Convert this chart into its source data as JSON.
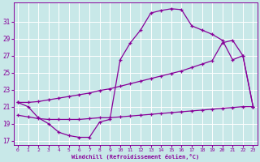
{
  "xlabel": "Windchill (Refroidissement éolien,°C)",
  "background_color": "#c8e8e8",
  "grid_color": "#b0d8d8",
  "line_color": "#880099",
  "ylim": [
    16.5,
    33.2
  ],
  "yticks": [
    17,
    19,
    21,
    23,
    25,
    27,
    29,
    31
  ],
  "xlim": [
    -0.4,
    23.4
  ],
  "xticks": [
    0,
    1,
    2,
    3,
    4,
    5,
    6,
    7,
    8,
    9,
    10,
    11,
    12,
    13,
    14,
    15,
    16,
    17,
    18,
    19,
    20,
    21,
    22,
    23
  ],
  "s1_x": [
    0,
    1,
    2,
    3,
    4,
    5,
    6,
    7,
    8,
    9,
    10,
    11,
    12,
    13,
    14,
    15,
    16,
    17,
    18,
    19,
    20,
    21,
    22,
    23
  ],
  "s1_y": [
    21.5,
    21.0,
    19.7,
    19.0,
    18.0,
    17.6,
    17.4,
    17.4,
    19.2,
    19.5,
    26.5,
    28.5,
    30.0,
    32.0,
    32.3,
    32.5,
    32.4,
    30.5,
    30.0,
    29.5,
    28.8,
    26.5,
    27.0,
    21.0
  ],
  "s2_x": [
    0,
    1,
    2,
    3,
    4,
    5,
    6,
    7,
    8,
    9,
    10,
    11,
    12,
    13,
    14,
    15,
    16,
    17,
    18,
    19,
    20,
    21,
    22,
    23
  ],
  "s2_y": [
    21.5,
    21.5,
    21.6,
    21.8,
    22.0,
    22.2,
    22.4,
    22.6,
    22.9,
    23.1,
    23.4,
    23.7,
    24.0,
    24.3,
    24.6,
    24.9,
    25.2,
    25.6,
    26.0,
    26.4,
    28.5,
    28.8,
    27.0,
    21.0
  ],
  "s3_x": [
    0,
    1,
    2,
    3,
    4,
    5,
    6,
    7,
    8,
    9,
    10,
    11,
    12,
    13,
    14,
    15,
    16,
    17,
    18,
    19,
    20,
    21,
    22,
    23
  ],
  "s3_y": [
    20.0,
    19.8,
    19.6,
    19.5,
    19.5,
    19.5,
    19.5,
    19.6,
    19.7,
    19.7,
    19.8,
    19.9,
    20.0,
    20.1,
    20.2,
    20.3,
    20.4,
    20.5,
    20.6,
    20.7,
    20.8,
    20.9,
    21.0,
    21.0
  ]
}
